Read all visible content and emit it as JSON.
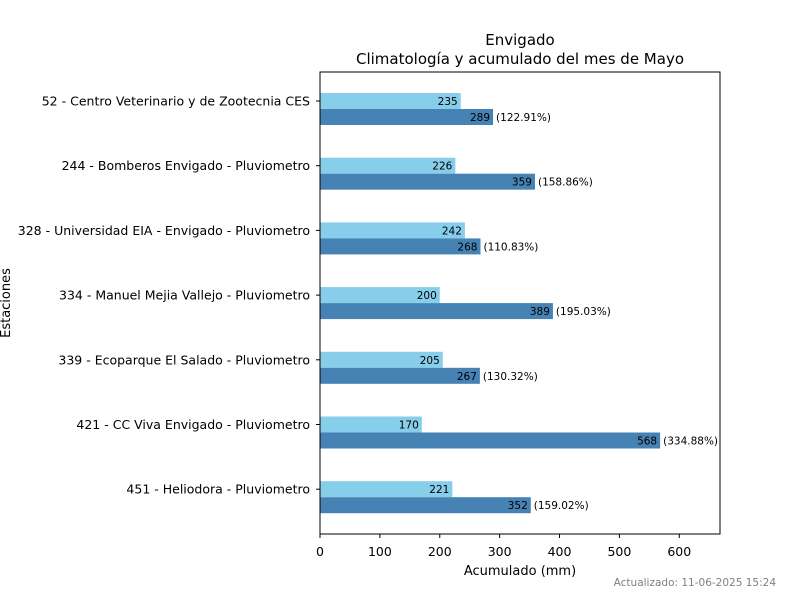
{
  "chart_data": {
    "type": "bar",
    "orientation": "horizontal",
    "title": "Envigado",
    "subtitle": "Climatología y acumulado del mes de Mayo",
    "xlabel": "Acumulado (mm)",
    "ylabel": "Estaciones",
    "xlim": [
      0,
      668
    ],
    "xticks": [
      "0",
      "100",
      "200",
      "300",
      "400",
      "500",
      "600"
    ],
    "grid": false,
    "categories": [
      "52 - Centro Veterinario y de Zootecnia CES",
      "244 - Bomberos Envigado - Pluviometro",
      "328 - Universidad EIA - Envigado - Pluviometro",
      "334 - Manuel Mejia Vallejo - Pluviometro",
      "339 - Ecoparque El Salado - Pluviometro",
      "421 - CC Viva Envigado - Pluviometro",
      "451 - Heliodora - Pluviometro"
    ],
    "series": [
      {
        "color": "#87ceeb",
        "values": [
          235,
          226,
          242,
          200,
          205,
          170,
          221
        ],
        "labels": [
          "235",
          "226",
          "242",
          "200",
          "205",
          "170",
          "221"
        ]
      },
      {
        "color": "#4682b4",
        "values": [
          289,
          359,
          268,
          389,
          267,
          568,
          352
        ],
        "labels": [
          "289",
          "359",
          "268",
          "389",
          "267",
          "568",
          "352"
        ],
        "percent_labels": [
          "(122.91%)",
          "(158.86%)",
          "(110.83%)",
          "(195.03%)",
          "(130.32%)",
          "(334.88%)",
          "(159.02%)"
        ]
      }
    ]
  },
  "footer": {
    "updated": "Actualizado: 11-06-2025 15:24"
  }
}
